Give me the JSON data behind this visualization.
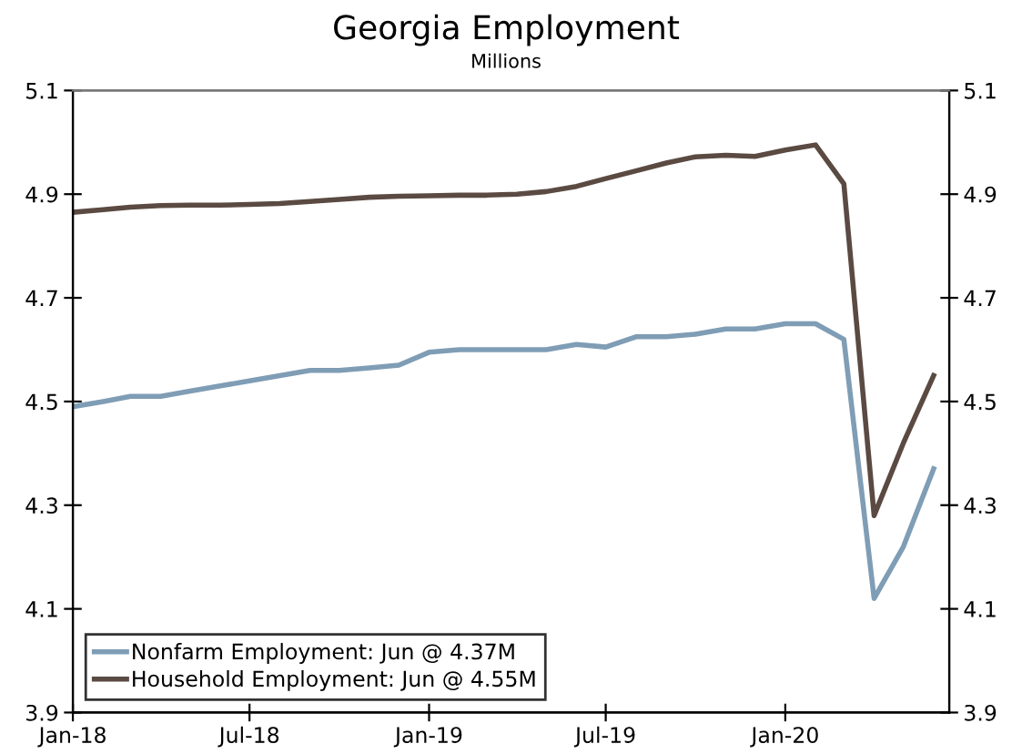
{
  "chart_data": {
    "type": "line",
    "title": "Georgia Employment",
    "subtitle": "Millions",
    "x": [
      "2018-01",
      "2018-02",
      "2018-03",
      "2018-04",
      "2018-05",
      "2018-06",
      "2018-07",
      "2018-08",
      "2018-09",
      "2018-10",
      "2018-11",
      "2018-12",
      "2019-01",
      "2019-02",
      "2019-03",
      "2019-04",
      "2019-05",
      "2019-06",
      "2019-07",
      "2019-08",
      "2019-09",
      "2019-10",
      "2019-11",
      "2019-12",
      "2020-01",
      "2020-02",
      "2020-03",
      "2020-04",
      "2020-05",
      "2020-06"
    ],
    "series": [
      {
        "name": "Nonfarm Employment: Jun @ 4.37M",
        "color": "#7f9db5",
        "values": [
          4.49,
          4.5,
          4.51,
          4.51,
          4.52,
          4.53,
          4.54,
          4.55,
          4.56,
          4.56,
          4.565,
          4.57,
          4.595,
          4.6,
          4.6,
          4.6,
          4.6,
          4.61,
          4.605,
          4.625,
          4.625,
          4.63,
          4.64,
          4.64,
          4.65,
          4.65,
          4.62,
          4.12,
          4.22,
          4.37
        ]
      },
      {
        "name": "Household Employment: Jun @ 4.55M",
        "color": "#5a4a42",
        "values": [
          4.865,
          4.87,
          4.875,
          4.878,
          4.879,
          4.879,
          4.88,
          4.882,
          4.886,
          4.89,
          4.894,
          4.896,
          4.897,
          4.898,
          4.898,
          4.9,
          4.905,
          4.915,
          4.93,
          4.945,
          4.96,
          4.972,
          4.975,
          4.973,
          4.985,
          4.995,
          4.92,
          4.28,
          4.42,
          4.55
        ]
      }
    ],
    "xlim": [
      "2018-01",
      "2020-06-17"
    ],
    "xticks": [
      {
        "value": "2018-01",
        "label": "Jan-18"
      },
      {
        "value": "2018-07",
        "label": "Jul-18"
      },
      {
        "value": "2019-01",
        "label": "Jan-19"
      },
      {
        "value": "2019-07",
        "label": "Jul-19"
      },
      {
        "value": "2020-01",
        "label": "Jan-20"
      }
    ],
    "ylim": [
      3.9,
      5.1
    ],
    "yticks": [
      3.9,
      4.1,
      4.3,
      4.5,
      4.7,
      4.9,
      5.1
    ],
    "y2lim": [
      3.9,
      5.1
    ],
    "y2ticks": [
      3.9,
      4.1,
      4.3,
      4.5,
      4.7,
      4.9,
      5.1
    ],
    "grid": false,
    "legend": "bottom left"
  }
}
